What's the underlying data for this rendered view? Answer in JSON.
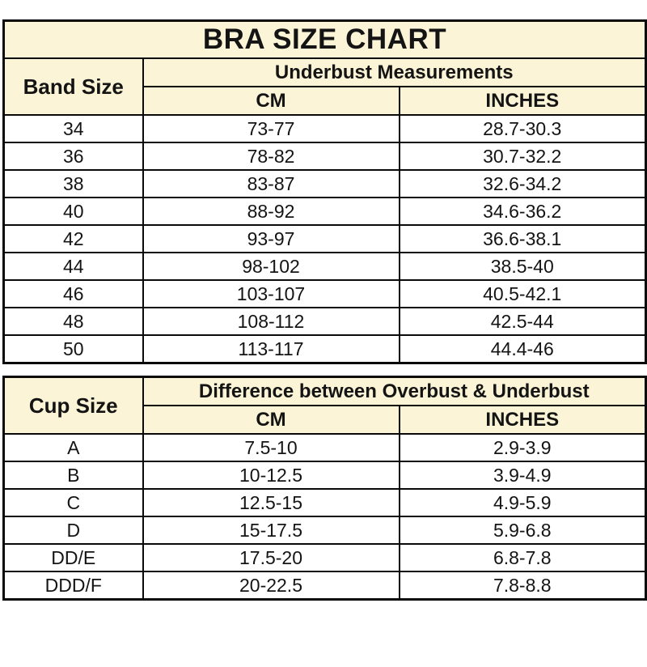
{
  "title": "BRA SIZE CHART",
  "colors": {
    "header_bg": "#FBF4D6",
    "border": "#0A0A0A",
    "text": "#141414",
    "page_bg": "#FFFFFF"
  },
  "band_table": {
    "row_header": "Band Size",
    "group_header": "Underbust Measurements",
    "col_cm": "CM",
    "col_inches": "INCHES",
    "rows": [
      {
        "size": "34",
        "cm": "73-77",
        "inches": "28.7-30.3"
      },
      {
        "size": "36",
        "cm": "78-82",
        "inches": "30.7-32.2"
      },
      {
        "size": "38",
        "cm": "83-87",
        "inches": "32.6-34.2"
      },
      {
        "size": "40",
        "cm": "88-92",
        "inches": "34.6-36.2"
      },
      {
        "size": "42",
        "cm": "93-97",
        "inches": "36.6-38.1"
      },
      {
        "size": "44",
        "cm": "98-102",
        "inches": "38.5-40"
      },
      {
        "size": "46",
        "cm": "103-107",
        "inches": "40.5-42.1"
      },
      {
        "size": "48",
        "cm": "108-112",
        "inches": "42.5-44"
      },
      {
        "size": "50",
        "cm": "113-117",
        "inches": "44.4-46"
      }
    ]
  },
  "cup_table": {
    "row_header": "Cup Size",
    "group_header": "Difference between Overbust & Underbust",
    "col_cm": "CM",
    "col_inches": "INCHES",
    "rows": [
      {
        "size": "A",
        "cm": "7.5-10",
        "inches": "2.9-3.9"
      },
      {
        "size": "B",
        "cm": "10-12.5",
        "inches": "3.9-4.9"
      },
      {
        "size": "C",
        "cm": "12.5-15",
        "inches": "4.9-5.9"
      },
      {
        "size": "D",
        "cm": "15-17.5",
        "inches": "5.9-6.8"
      },
      {
        "size": "DD/E",
        "cm": "17.5-20",
        "inches": "6.8-7.8"
      },
      {
        "size": "DDD/F",
        "cm": "20-22.5",
        "inches": "7.8-8.8"
      }
    ]
  },
  "chart_data": [
    {
      "type": "table",
      "title": "BRA SIZE CHART — Band Size / Underbust Measurements",
      "columns": [
        "Band Size",
        "CM",
        "INCHES"
      ],
      "rows": [
        [
          "34",
          "73-77",
          "28.7-30.3"
        ],
        [
          "36",
          "78-82",
          "30.7-32.2"
        ],
        [
          "38",
          "83-87",
          "32.6-34.2"
        ],
        [
          "40",
          "88-92",
          "34.6-36.2"
        ],
        [
          "42",
          "93-97",
          "36.6-38.1"
        ],
        [
          "44",
          "98-102",
          "38.5-40"
        ],
        [
          "46",
          "103-107",
          "40.5-42.1"
        ],
        [
          "48",
          "108-112",
          "42.5-44"
        ],
        [
          "50",
          "113-117",
          "44.4-46"
        ]
      ]
    },
    {
      "type": "table",
      "title": "Cup Size — Difference between Overbust & Underbust",
      "columns": [
        "Cup Size",
        "CM",
        "INCHES"
      ],
      "rows": [
        [
          "A",
          "7.5-10",
          "2.9-3.9"
        ],
        [
          "B",
          "10-12.5",
          "3.9-4.9"
        ],
        [
          "C",
          "12.5-15",
          "4.9-5.9"
        ],
        [
          "D",
          "15-17.5",
          "5.9-6.8"
        ],
        [
          "DD/E",
          "17.5-20",
          "6.8-7.8"
        ],
        [
          "DDD/F",
          "20-22.5",
          "7.8-8.8"
        ]
      ]
    }
  ]
}
